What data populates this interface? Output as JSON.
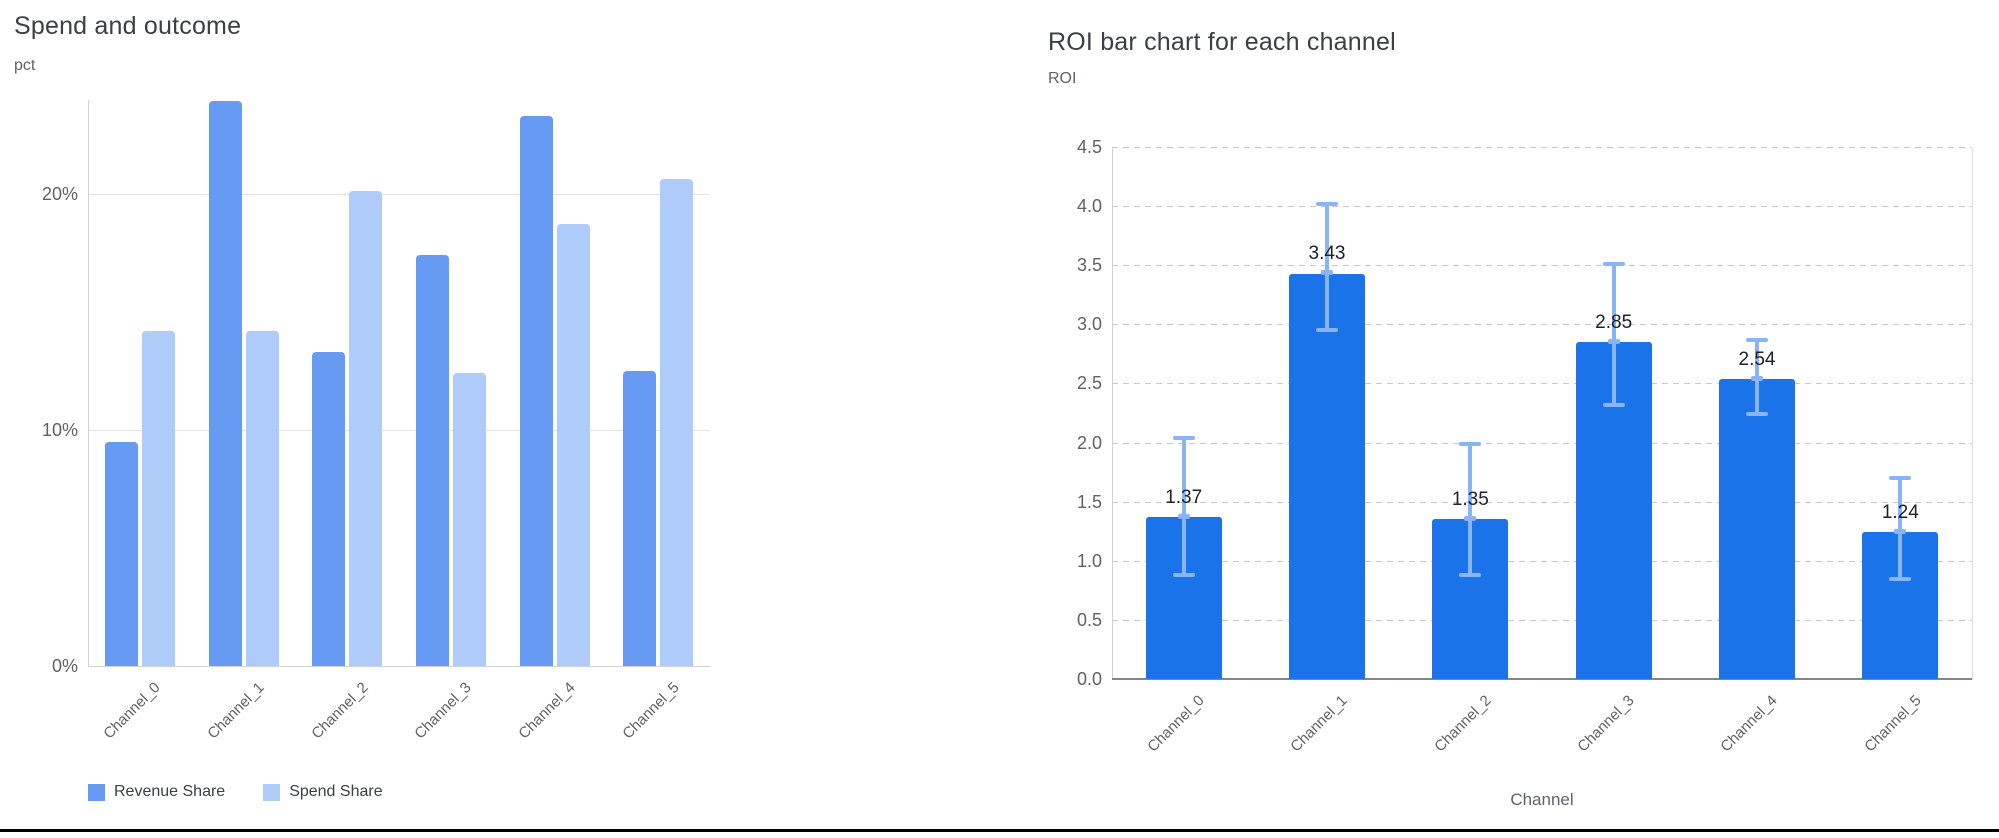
{
  "page": {
    "background": "#ffffff",
    "divider_color": "#000000"
  },
  "chart_data": [
    {
      "id": "spend-and-outcome",
      "type": "bar",
      "title": "Spend and outcome",
      "ylabel": "pct",
      "xlabel": "",
      "categories": [
        "Channel_0",
        "Channel_1",
        "Channel_2",
        "Channel_3",
        "Channel_4",
        "Channel_5"
      ],
      "series": [
        {
          "name": "Revenue Share",
          "values": [
            9.5,
            23.9,
            13.3,
            17.4,
            23.3,
            12.5
          ]
        },
        {
          "name": "Spend Share",
          "values": [
            14.2,
            14.2,
            20.1,
            12.4,
            18.7,
            20.6
          ]
        }
      ],
      "yticks": [
        {
          "value": 0,
          "label": "0%"
        },
        {
          "value": 10,
          "label": "10%"
        },
        {
          "value": 20,
          "label": "20%"
        }
      ],
      "ylim": [
        0,
        24
      ],
      "grid": "solid",
      "legend_position": "bottom",
      "colors": [
        "#669af3",
        "#aecbfa"
      ]
    },
    {
      "id": "roi-by-channel",
      "type": "bar",
      "title": "ROI bar chart for each channel",
      "ylabel": "ROI",
      "xlabel": "Channel",
      "categories": [
        "Channel_0",
        "Channel_1",
        "Channel_2",
        "Channel_3",
        "Channel_4",
        "Channel_5"
      ],
      "values": [
        1.37,
        3.43,
        1.35,
        2.85,
        2.54,
        1.24
      ],
      "value_labels": [
        "1.37",
        "3.43",
        "1.35",
        "2.85",
        "2.54",
        "1.24"
      ],
      "error_low": [
        0.89,
        2.96,
        0.89,
        2.33,
        2.25,
        0.85
      ],
      "error_high": [
        2.05,
        4.03,
        2.0,
        3.52,
        2.88,
        1.71
      ],
      "yticks": [
        {
          "value": 0.0,
          "label": "0.0"
        },
        {
          "value": 0.5,
          "label": "0.5"
        },
        {
          "value": 1.0,
          "label": "1.0"
        },
        {
          "value": 1.5,
          "label": "1.5"
        },
        {
          "value": 2.0,
          "label": "2.0"
        },
        {
          "value": 2.5,
          "label": "2.5"
        },
        {
          "value": 3.0,
          "label": "3.0"
        },
        {
          "value": 3.5,
          "label": "3.5"
        },
        {
          "value": 4.0,
          "label": "4.0"
        },
        {
          "value": 4.5,
          "label": "4.5"
        }
      ],
      "ylim": [
        0,
        4.5
      ],
      "grid": "dashed",
      "legend_position": "none",
      "bar_color": "#1a73e8",
      "error_color": "#8ab4f8"
    }
  ]
}
